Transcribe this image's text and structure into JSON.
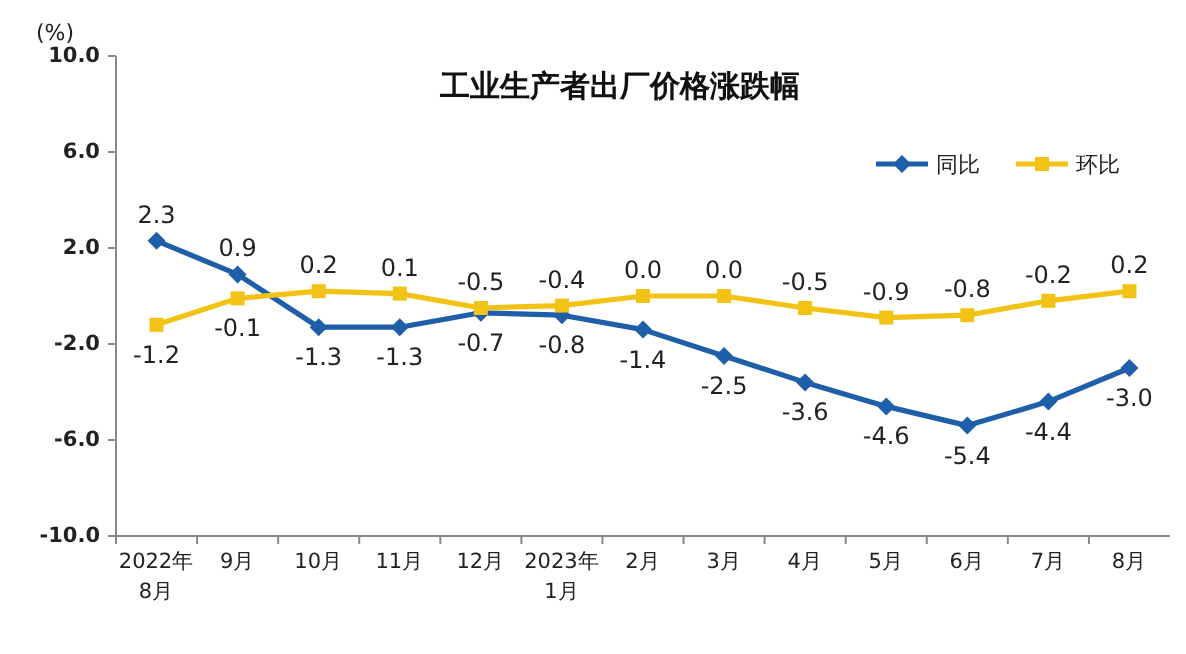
{
  "chart_data": {
    "type": "line",
    "title": "工业生产者出厂价格涨跌幅",
    "ylabel": "(%)",
    "categories": [
      "2022年\n8月",
      "9月",
      "10月",
      "11月",
      "12月",
      "2023年\n1月",
      "2月",
      "3月",
      "4月",
      "5月",
      "6月",
      "7月",
      "8月"
    ],
    "series": [
      {
        "name": "同比",
        "color": "#1f5ea8",
        "marker": "diamond",
        "values": [
          2.3,
          0.9,
          -1.3,
          -1.3,
          -0.7,
          -0.8,
          -1.4,
          -2.5,
          -3.6,
          -4.6,
          -5.4,
          -4.4,
          -3.0
        ],
        "value_labels": [
          "2.3",
          "0.9",
          "-1.3",
          "-1.3",
          "-0.7",
          "-0.8",
          "-1.4",
          "-2.5",
          "-3.6",
          "-4.6",
          "-5.4",
          "-4.4",
          "-3.0"
        ]
      },
      {
        "name": "环比",
        "color": "#f2c314",
        "marker": "square",
        "values": [
          -1.2,
          -0.1,
          0.2,
          0.1,
          -0.5,
          -0.4,
          0.0,
          0.0,
          -0.5,
          -0.9,
          -0.8,
          -0.2,
          0.2
        ],
        "value_labels": [
          "-1.2",
          "-0.1",
          "0.2",
          "0.1",
          "-0.5",
          "-0.4",
          "0.0",
          "0.0",
          "-0.5",
          "-0.9",
          "-0.8",
          "-0.2",
          "0.2"
        ]
      }
    ],
    "ylim": [
      -10,
      10
    ],
    "yticks": [
      {
        "value": -10,
        "label": "-10.0"
      },
      {
        "value": -6,
        "label": "-6.0"
      },
      {
        "value": -2,
        "label": "-2.0"
      },
      {
        "value": 2,
        "label": "2.0"
      },
      {
        "value": 6,
        "label": "6.0"
      },
      {
        "value": 10,
        "label": "10.0"
      }
    ],
    "legend": "top right",
    "grid": false
  }
}
